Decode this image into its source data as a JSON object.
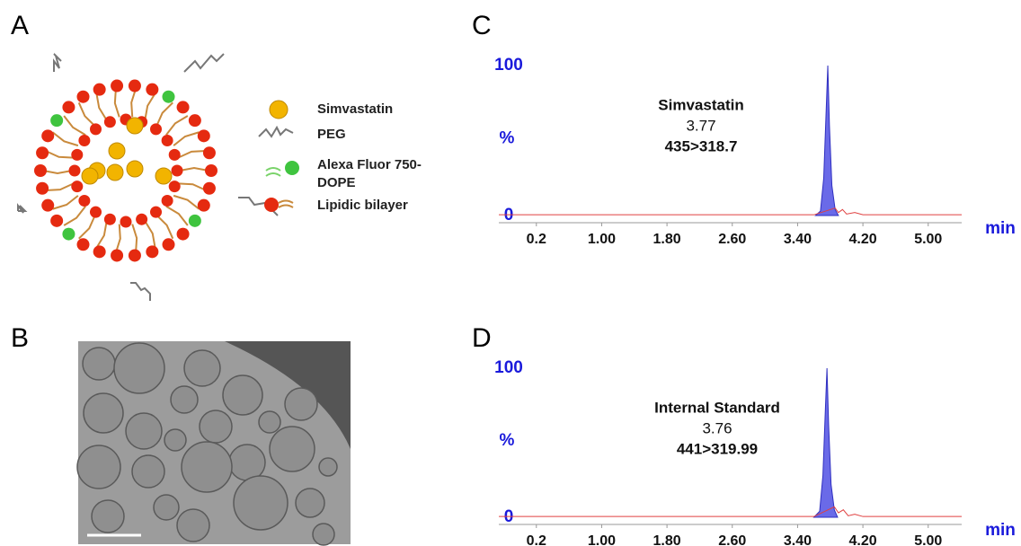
{
  "panels": {
    "A": {
      "label": "A",
      "legend": [
        "Simvastatin",
        "PEG",
        "Alexa Fluor 750-",
        "DOPE",
        "Lipidic bilayer"
      ]
    },
    "B": {
      "label": "B"
    },
    "C": {
      "label": "C"
    },
    "D": {
      "label": "D"
    }
  },
  "chart_data": [
    {
      "type": "area",
      "annotations": [
        "Simvastatin",
        "3.77",
        "435>318.7"
      ],
      "ylabel": "%",
      "xlabel": "min",
      "xlim": [
        -0.26,
        5.41
      ],
      "xticks": [
        0.2,
        {
          "value": 1,
          "label": "1.00"
        },
        {
          "value": 1.8,
          "label": "1.80"
        },
        {
          "value": 2.6,
          "label": "2.60"
        },
        {
          "value": 3.4,
          "label": "3.40"
        },
        {
          "value": 4.2,
          "label": "4.20"
        },
        {
          "value": 5,
          "label": "5.00"
        }
      ],
      "ylim": [
        0,
        100
      ],
      "yticks": [
        0,
        100
      ],
      "series": [
        {
          "color": "#6a6ae8",
          "x": [
            3.62,
            3.68,
            3.72,
            3.75,
            3.77,
            3.79,
            3.82,
            3.86,
            3.9
          ],
          "values": [
            0,
            3,
            25,
            70,
            100,
            60,
            20,
            4,
            0
          ]
        },
        {
          "color": "#e04040",
          "x": [
            -0.26,
            3.6,
            3.86,
            3.9,
            3.95,
            4.0,
            4.1,
            4.2,
            5.41
          ],
          "values": [
            0.5,
            0.5,
            5,
            2,
            4,
            1,
            2,
            0.5,
            0.5
          ]
        }
      ]
    },
    {
      "type": "area",
      "annotations": [
        "Internal Standard",
        "3.76",
        "441>319.99"
      ],
      "ylabel": "%",
      "xlabel": "min",
      "xlim": [
        -0.26,
        5.41
      ],
      "xticks": [
        0.2,
        {
          "value": 1,
          "label": "1.00"
        },
        {
          "value": 1.8,
          "label": "1.80"
        },
        {
          "value": 2.6,
          "label": "2.60"
        },
        {
          "value": 3.4,
          "label": "3.40"
        },
        {
          "value": 4.2,
          "label": "4.20"
        },
        {
          "value": 5,
          "label": "5.00"
        }
      ],
      "ylim": [
        0,
        100
      ],
      "yticks": [
        0,
        100
      ],
      "series": [
        {
          "color": "#6a6ae8",
          "x": [
            3.6,
            3.67,
            3.71,
            3.74,
            3.76,
            3.78,
            3.81,
            3.85,
            3.89
          ],
          "values": [
            0,
            4,
            28,
            72,
            100,
            62,
            22,
            5,
            0
          ]
        },
        {
          "color": "#e04040",
          "x": [
            -0.26,
            3.6,
            3.85,
            3.9,
            3.96,
            4.02,
            4.1,
            4.2,
            5.41
          ],
          "values": [
            0.5,
            0.5,
            7,
            3,
            5,
            1,
            2,
            0.5,
            0.5
          ]
        }
      ]
    }
  ]
}
